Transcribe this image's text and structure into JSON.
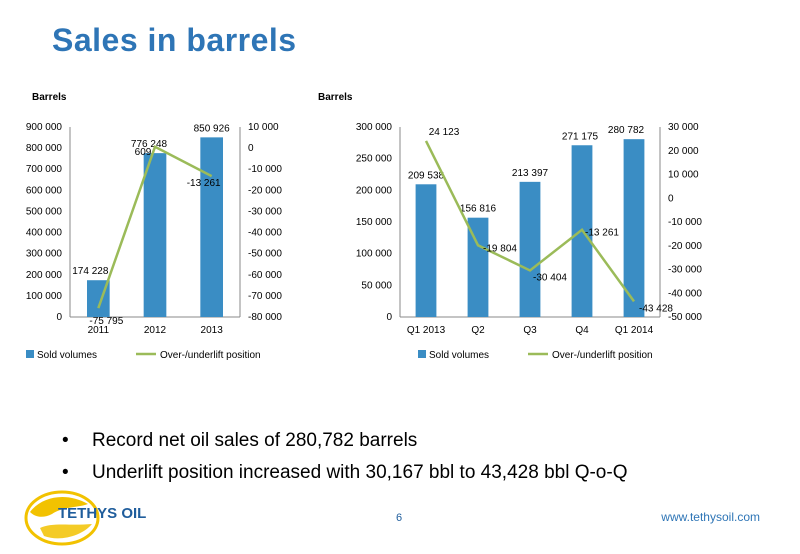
{
  "title": "Sales in barrels",
  "charts": {
    "left": {
      "unit_label": "Barrels"
    },
    "right": {
      "unit_label": "Barrels"
    }
  },
  "legend": {
    "bars": "Sold volumes",
    "line": "Over-/underlift position"
  },
  "bullets": [
    "Record net oil sales of 280,782 barrels",
    "Underlift position increased with 30,167 bbl to 43,428 bbl Q-o-Q"
  ],
  "footer": {
    "logo_text": "TETHYS OIL",
    "page_number": "6",
    "website": "www.tethysoil.com"
  },
  "colors": {
    "bars": "#3a8dc4",
    "line": "#9bbb59",
    "title": "#2e75b6"
  },
  "chart_data": [
    {
      "type": "bar",
      "categories": [
        "2011",
        "2012",
        "2013"
      ],
      "series": [
        {
          "name": "Sold volumes",
          "values": [
            174228,
            776248,
            850926
          ],
          "labels": [
            "174 228",
            "776 248",
            "850 926"
          ],
          "axis": "left"
        },
        {
          "name": "Over-/underlift position",
          "type": "line",
          "values": [
            -75795,
            609,
            -13261
          ],
          "labels": [
            "-75 795",
            "609",
            "-13 261"
          ],
          "axis": "right"
        }
      ],
      "ylim": [
        0,
        900000
      ],
      "ylim_right": [
        -80000,
        10000
      ],
      "yticks": [
        "0",
        "100 000",
        "200 000",
        "300 000",
        "400 000",
        "500 000",
        "600 000",
        "700 000",
        "800 000",
        "900 000"
      ],
      "yticks_right": [
        "-80 000",
        "-70 000",
        "-60 000",
        "-50 000",
        "-40 000",
        "-30 000",
        "-20 000",
        "-10 000",
        "0",
        "10 000"
      ],
      "ylabel": "Barrels",
      "legend": "bottom"
    },
    {
      "type": "bar",
      "categories": [
        "Q1 2013",
        "Q2",
        "Q3",
        "Q4",
        "Q1 2014"
      ],
      "series": [
        {
          "name": "Sold volumes",
          "values": [
            209538,
            156816,
            213397,
            271175,
            280782
          ],
          "labels": [
            "209 538",
            "156 816",
            "213 397",
            "271 175",
            "280 782"
          ],
          "axis": "left"
        },
        {
          "name": "Over-/underlift position",
          "type": "line",
          "values": [
            24123,
            -19804,
            -30404,
            -13261,
            -43428
          ],
          "labels": [
            "24 123",
            "-19 804",
            "-30 404",
            "-13 261",
            "-43 428"
          ],
          "axis": "right"
        }
      ],
      "ylim": [
        0,
        300000
      ],
      "ylim_right": [
        -50000,
        30000
      ],
      "yticks": [
        "0",
        "50 000",
        "100 000",
        "150 000",
        "200 000",
        "250 000",
        "300 000"
      ],
      "yticks_right": [
        "-50 000",
        "-40 000",
        "-30 000",
        "-20 000",
        "-10 000",
        "0",
        "10 000",
        "20 000",
        "30 000"
      ],
      "ylabel": "Barrels",
      "legend": "bottom"
    }
  ]
}
